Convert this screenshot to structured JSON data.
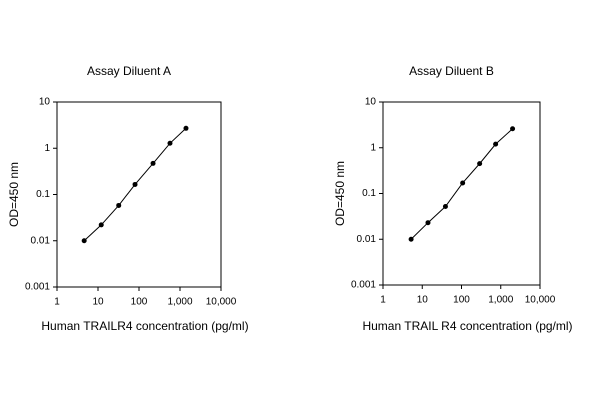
{
  "chart_data": [
    {
      "type": "line",
      "title": "Assay Diluent A",
      "x_label": "Human TRAILR4 concentration (pg/ml)",
      "y_label": "OD=450 nm",
      "xscale": "log",
      "yscale": "log",
      "grid": false,
      "color": "#000000",
      "x": [
        4.6,
        12,
        32,
        80,
        220,
        570,
        1400
      ],
      "values": [
        0.01,
        0.022,
        0.058,
        0.165,
        0.47,
        1.28,
        2.7
      ],
      "xlim": [
        1,
        10000
      ],
      "xticks": [
        1,
        10,
        100,
        {
          "value": 1000,
          "label": "1,000"
        },
        {
          "value": 10000,
          "label": "10,000"
        }
      ],
      "ylim": [
        0.001,
        10
      ],
      "yticks": [
        0.001,
        0.01,
        0.1,
        1,
        10
      ]
    },
    {
      "type": "line",
      "title": "Assay Diluent B",
      "x_label": "Human TRAIL R4 concentration (pg/ml)",
      "y_label": "OD=450 nm",
      "xscale": "log",
      "yscale": "log",
      "grid": false,
      "color": "#000000",
      "x": [
        5.2,
        14,
        39,
        107,
        290,
        740,
        2000
      ],
      "values": [
        0.01,
        0.023,
        0.052,
        0.17,
        0.45,
        1.2,
        2.6
      ],
      "xlim": [
        1,
        10000
      ],
      "xticks": [
        1,
        10,
        100,
        {
          "value": 1000,
          "label": "1,000"
        },
        {
          "value": 10000,
          "label": "10,000"
        }
      ],
      "ylim": [
        0.001,
        10
      ],
      "yticks": [
        0.001,
        0.01,
        0.1,
        1,
        10
      ]
    }
  ]
}
